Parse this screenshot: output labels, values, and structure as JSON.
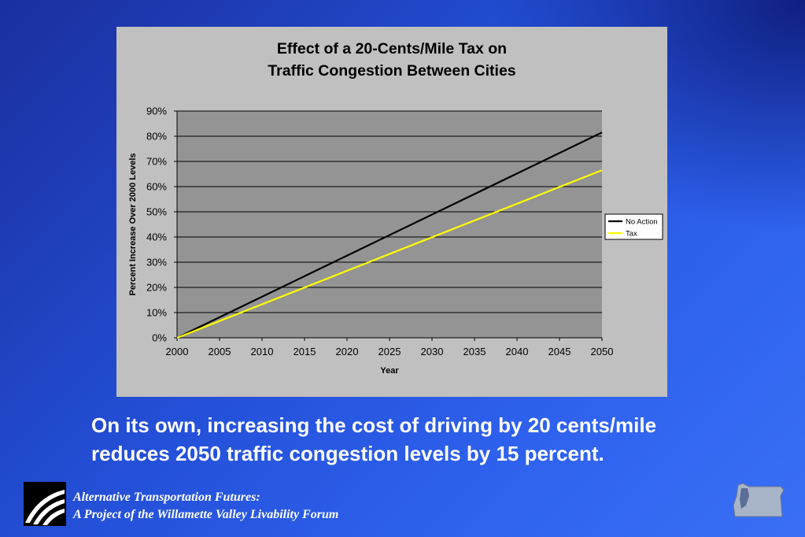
{
  "chart_data": {
    "type": "line",
    "title": [
      "Effect of a 20-Cents/Mile Tax on",
      "Traffic Congestion Between Cities"
    ],
    "xlabel": "Year",
    "ylabel": "Percent Increase Over 2000 Levels",
    "x": [
      2000,
      2050
    ],
    "xticks": [
      "2000",
      "2005",
      "2010",
      "2015",
      "2020",
      "2025",
      "2030",
      "2035",
      "2040",
      "2045",
      "2050"
    ],
    "yticks": [
      "0%",
      "10%",
      "20%",
      "30%",
      "40%",
      "50%",
      "60%",
      "70%",
      "80%",
      "90%"
    ],
    "xlim": [
      2000,
      2050
    ],
    "ylim": [
      0,
      90
    ],
    "grid": "horizontal",
    "legend": "right",
    "series": [
      {
        "name": "No Action",
        "color": "#000000",
        "values": [
          0,
          81.5
        ]
      },
      {
        "name": "Tax",
        "color": "#ffff00",
        "values": [
          0,
          66.5
        ]
      }
    ]
  },
  "caption": {
    "line1": "On its own, increasing the cost of driving by 20 cents/mile",
    "line2": "reduces 2050 traffic congestion levels by 15 percent."
  },
  "footer": {
    "line1": "Alternative Transportation Futures:",
    "line2": "A Project of the Willamette Valley Livability Forum"
  },
  "icons": {
    "logo": "road-swoosh-logo",
    "map": "oregon-map-icon"
  }
}
